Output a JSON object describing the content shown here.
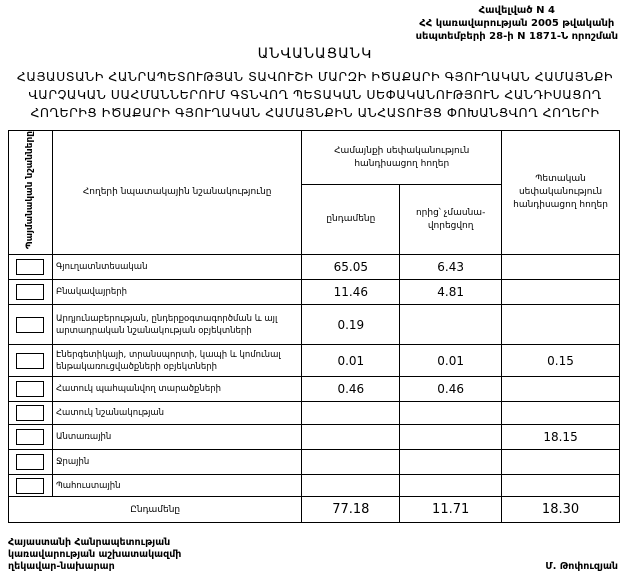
{
  "appendix": {
    "line1": "Հավելված N 4",
    "line2": "ՀՀ կառավարության 2005 թվականի",
    "line3": "սեպտեմբերի 28-ի N 1871-Ն որոշման"
  },
  "title": "ԱՆՎԱՆԱՑԱՆԿ",
  "subtitle": [
    "ՀԱՅԱՍՏԱՆԻ ՀԱՆՐԱՊԵՏՈՒԹՅԱՆ ՏԱՎՈՒՇԻ ՄԱՐԶԻ ԻԾԱՔԱՐԻ ԳՅՈՒՂԱԿԱՆ ՀԱՄԱՅՆՔԻ",
    "ՎԱՐՉԱԿԱՆ ՍԱՀՄԱՆՆԵՐՈՒՄ ԳՏՆՎՈՂ ՊԵՏԱԿԱՆ ՍԵՓԱԿԱՆՈՒԹՅՈՒՆ ՀԱՆԴԻՍԱՑՈՂ",
    "ՀՈՂԵՐԻՑ ԻԾԱՔԱՐԻ ԳՅՈՒՂԱԿԱՆ ՀԱՄԱՅՆՔԻՆ ԱՆՀԱՏՈՒՅՑ ՓՈԽԱՆՑՎՈՂ ՀՈՂԵՐԻ"
  ],
  "table": {
    "headers": {
      "symbols": "Պայմանական նշանները",
      "purpose": "Հողերի նպատակային նշանակությունը",
      "community": "Համայնքի սեփականություն հանդիսացող հողեր",
      "total": "ընդամենը",
      "of_which": "որից՝ չմասնա-վորեցվող",
      "state": "Պետական սեփականություն հանդիսացող հողեր"
    },
    "rows": [
      {
        "label": "Գյուղատնտեսական",
        "total": "65.05",
        "of_which": "6.43",
        "state": ""
      },
      {
        "label": "Բնակավայրերի",
        "total": "11.46",
        "of_which": "4.81",
        "state": ""
      },
      {
        "label": "Արդյունաբերության, ընդերքօգտագործման և այլ արտադրական նշանակության օբյեկտների",
        "total": "0.19",
        "of_which": "",
        "state": ""
      },
      {
        "label": "Էներգետիկայի, տրանսպորտի, կապի և կոմունալ ենթակառուցվածքների օբյեկտների",
        "total": "0.01",
        "of_which": "0.01",
        "state": "0.15"
      },
      {
        "label": "Հատուկ պահպանվող տարածքների",
        "total": "0.46",
        "of_which": "0.46",
        "state": ""
      },
      {
        "label": "Հատուկ նշանակության",
        "total": "",
        "of_which": "",
        "state": ""
      },
      {
        "label": "Անտառային",
        "total": "",
        "of_which": "",
        "state": "18.15"
      },
      {
        "label": "Ջրային",
        "total": "",
        "of_which": "",
        "state": ""
      },
      {
        "label": "Պահուստային",
        "total": "",
        "of_which": "",
        "state": ""
      }
    ],
    "totals": {
      "label": "Ընդամենը",
      "total": "77.18",
      "of_which": "11.71",
      "state": "18.30"
    }
  },
  "signature": {
    "title_lines": [
      "Հայաստանի Հանրապետության",
      "կառավարության աշխատակազմի",
      "ղեկավար-նախարար"
    ],
    "name": "Մ. Թոփուզյան"
  }
}
